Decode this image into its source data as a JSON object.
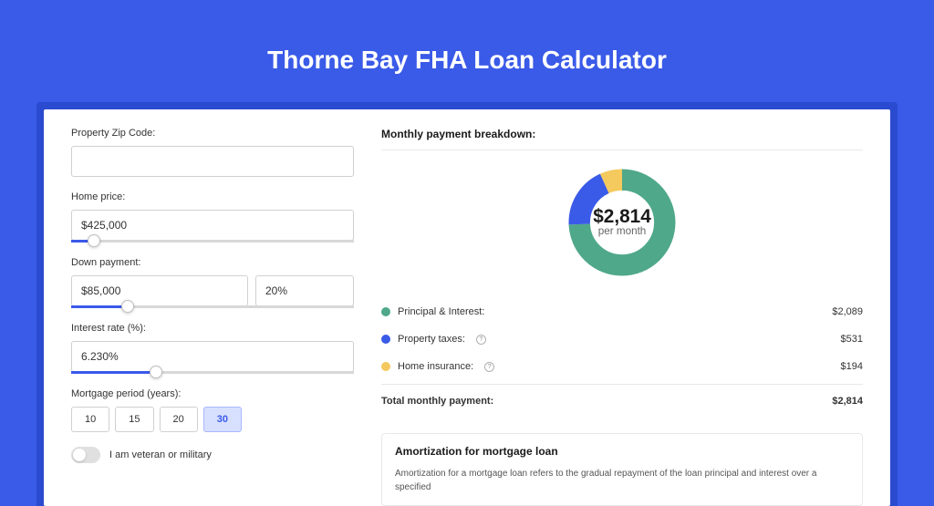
{
  "page": {
    "title": "Thorne Bay FHA Loan Calculator",
    "background_color": "#3a5ae8",
    "card_bg": "#ffffff"
  },
  "form": {
    "zip": {
      "label": "Property Zip Code:",
      "value": ""
    },
    "home_price": {
      "label": "Home price:",
      "value": "$425,000",
      "slider_pct": 8
    },
    "down_payment": {
      "label": "Down payment:",
      "value": "$85,000",
      "pct_value": "20%",
      "slider_pct": 20
    },
    "interest": {
      "label": "Interest rate (%):",
      "value": "6.230%",
      "slider_pct": 30
    },
    "period": {
      "label": "Mortgage period (years):",
      "options": [
        "10",
        "15",
        "20",
        "30"
      ],
      "selected": "30"
    },
    "veteran": {
      "label": "I am veteran or military",
      "on": false
    }
  },
  "breakdown": {
    "heading": "Monthly payment breakdown:",
    "donut": {
      "center_amount": "$2,814",
      "center_sub": "per month",
      "slices": [
        {
          "label": "Principal & Interest",
          "color": "#4fa88a",
          "pct": 74.2
        },
        {
          "label": "Property taxes",
          "color": "#3a5ae8",
          "pct": 18.9
        },
        {
          "label": "Home insurance",
          "color": "#f4c95d",
          "pct": 6.9
        }
      ]
    },
    "rows": [
      {
        "label": "Principal & Interest:",
        "amount": "$2,089",
        "color": "#4fa88a",
        "info": false
      },
      {
        "label": "Property taxes:",
        "amount": "$531",
        "color": "#3a5ae8",
        "info": true
      },
      {
        "label": "Home insurance:",
        "amount": "$194",
        "color": "#f4c95d",
        "info": true
      }
    ],
    "total": {
      "label": "Total monthly payment:",
      "amount": "$2,814"
    }
  },
  "amort": {
    "heading": "Amortization for mortgage loan",
    "text": "Amortization for a mortgage loan refers to the gradual repayment of the loan principal and interest over a specified"
  }
}
